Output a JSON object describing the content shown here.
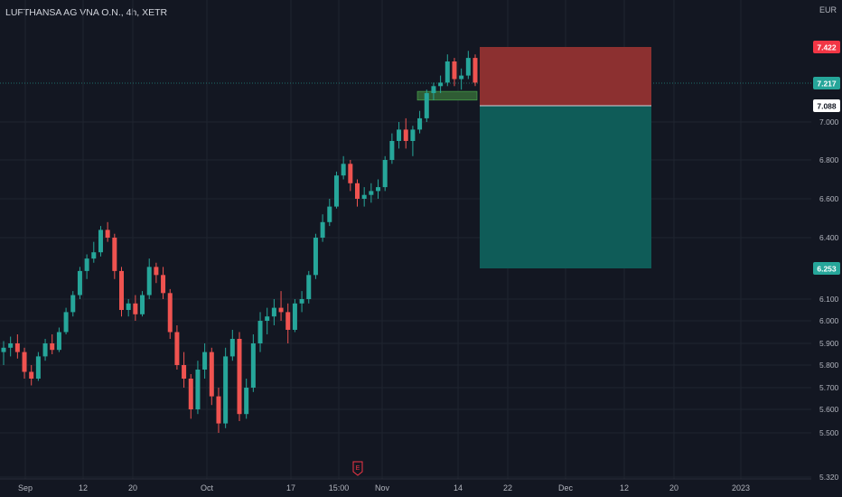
{
  "header": {
    "symbol_title": "LUFTHANSA AG VNA O.N., 4h, XETR",
    "currency": "EUR"
  },
  "colors": {
    "background": "#131722",
    "up": "#26a69a",
    "down": "#ef5350",
    "stop_zone": "#8c3030",
    "target_zone": "#0f5c58",
    "entry_zone": "#2f5c34"
  },
  "chart_data": {
    "type": "candlestick",
    "title": "LUFTHANSA AG VNA O.N., 4h, XETR",
    "currency": "EUR",
    "x_ticks": [
      "Sep",
      "12",
      "20",
      "Oct",
      "17",
      "15:00",
      "Nov",
      "14",
      "22",
      "Dec",
      "12",
      "20",
      "2023"
    ],
    "y_ticks": [
      "7.000",
      "6.800",
      "6.600",
      "6.400",
      "6.100",
      "6.000",
      "5.900",
      "5.800",
      "5.700",
      "5.600",
      "5.500",
      "5.320"
    ],
    "price_labels": [
      {
        "value": "7.422",
        "kind": "stop"
      },
      {
        "value": "7.217",
        "kind": "last"
      },
      {
        "value": "7.088",
        "kind": "entry"
      },
      {
        "value": "6.253",
        "kind": "target"
      }
    ],
    "position": {
      "type": "short",
      "entry": 7.088,
      "stop": 7.422,
      "target": 6.253
    },
    "marker": "E",
    "series": [
      {
        "o": 5.86,
        "h": 5.91,
        "l": 5.8,
        "c": 5.88
      },
      {
        "o": 5.88,
        "h": 5.93,
        "l": 5.84,
        "c": 5.9
      },
      {
        "o": 5.9,
        "h": 5.94,
        "l": 5.83,
        "c": 5.86
      },
      {
        "o": 5.86,
        "h": 5.88,
        "l": 5.74,
        "c": 5.77
      },
      {
        "o": 5.77,
        "h": 5.8,
        "l": 5.71,
        "c": 5.74
      },
      {
        "o": 5.74,
        "h": 5.86,
        "l": 5.73,
        "c": 5.84
      },
      {
        "o": 5.84,
        "h": 5.92,
        "l": 5.82,
        "c": 5.9
      },
      {
        "o": 5.9,
        "h": 5.94,
        "l": 5.85,
        "c": 5.87
      },
      {
        "o": 5.87,
        "h": 5.97,
        "l": 5.86,
        "c": 5.95
      },
      {
        "o": 5.95,
        "h": 6.06,
        "l": 5.94,
        "c": 6.04
      },
      {
        "o": 6.04,
        "h": 6.14,
        "l": 6.02,
        "c": 6.12
      },
      {
        "o": 6.12,
        "h": 6.26,
        "l": 6.1,
        "c": 6.24
      },
      {
        "o": 6.24,
        "h": 6.32,
        "l": 6.2,
        "c": 6.3
      },
      {
        "o": 6.3,
        "h": 6.38,
        "l": 6.28,
        "c": 6.33
      },
      {
        "o": 6.33,
        "h": 6.46,
        "l": 6.31,
        "c": 6.44
      },
      {
        "o": 6.44,
        "h": 6.48,
        "l": 6.38,
        "c": 6.4
      },
      {
        "o": 6.4,
        "h": 6.42,
        "l": 6.2,
        "c": 6.24
      },
      {
        "o": 6.24,
        "h": 6.26,
        "l": 6.02,
        "c": 6.05
      },
      {
        "o": 6.05,
        "h": 6.1,
        "l": 6.02,
        "c": 6.08
      },
      {
        "o": 6.08,
        "h": 6.12,
        "l": 6.0,
        "c": 6.03
      },
      {
        "o": 6.03,
        "h": 6.14,
        "l": 6.02,
        "c": 6.12
      },
      {
        "o": 6.12,
        "h": 6.3,
        "l": 6.1,
        "c": 6.26
      },
      {
        "o": 6.26,
        "h": 6.28,
        "l": 6.18,
        "c": 6.22
      },
      {
        "o": 6.22,
        "h": 6.26,
        "l": 6.1,
        "c": 6.13
      },
      {
        "o": 6.13,
        "h": 6.15,
        "l": 5.92,
        "c": 5.95
      },
      {
        "o": 5.95,
        "h": 5.98,
        "l": 5.78,
        "c": 5.8
      },
      {
        "o": 5.8,
        "h": 5.86,
        "l": 5.7,
        "c": 5.74
      },
      {
        "o": 5.74,
        "h": 5.76,
        "l": 5.56,
        "c": 5.6
      },
      {
        "o": 5.6,
        "h": 5.82,
        "l": 5.58,
        "c": 5.78
      },
      {
        "o": 5.78,
        "h": 5.9,
        "l": 5.74,
        "c": 5.86
      },
      {
        "o": 5.86,
        "h": 5.88,
        "l": 5.62,
        "c": 5.66
      },
      {
        "o": 5.66,
        "h": 5.7,
        "l": 5.5,
        "c": 5.54
      },
      {
        "o": 5.54,
        "h": 5.88,
        "l": 5.52,
        "c": 5.84
      },
      {
        "o": 5.84,
        "h": 5.96,
        "l": 5.82,
        "c": 5.92
      },
      {
        "o": 5.92,
        "h": 5.95,
        "l": 5.55,
        "c": 5.58
      },
      {
        "o": 5.58,
        "h": 5.74,
        "l": 5.56,
        "c": 5.7
      },
      {
        "o": 5.7,
        "h": 5.94,
        "l": 5.68,
        "c": 5.9
      },
      {
        "o": 5.9,
        "h": 6.04,
        "l": 5.86,
        "c": 6.0
      },
      {
        "o": 6.0,
        "h": 6.06,
        "l": 5.94,
        "c": 6.02
      },
      {
        "o": 6.02,
        "h": 6.1,
        "l": 5.98,
        "c": 6.06
      },
      {
        "o": 6.06,
        "h": 6.14,
        "l": 6.0,
        "c": 6.04
      },
      {
        "o": 6.04,
        "h": 6.08,
        "l": 5.9,
        "c": 5.96
      },
      {
        "o": 5.96,
        "h": 6.1,
        "l": 5.95,
        "c": 6.08
      },
      {
        "o": 6.08,
        "h": 6.14,
        "l": 6.04,
        "c": 6.1
      },
      {
        "o": 6.1,
        "h": 6.24,
        "l": 6.08,
        "c": 6.22
      },
      {
        "o": 6.22,
        "h": 6.42,
        "l": 6.2,
        "c": 6.4
      },
      {
        "o": 6.4,
        "h": 6.52,
        "l": 6.38,
        "c": 6.48
      },
      {
        "o": 6.48,
        "h": 6.6,
        "l": 6.46,
        "c": 6.56
      },
      {
        "o": 6.56,
        "h": 6.74,
        "l": 6.55,
        "c": 6.72
      },
      {
        "o": 6.72,
        "h": 6.82,
        "l": 6.7,
        "c": 6.78
      },
      {
        "o": 6.78,
        "h": 6.8,
        "l": 6.64,
        "c": 6.68
      },
      {
        "o": 6.68,
        "h": 6.7,
        "l": 6.56,
        "c": 6.6
      },
      {
        "o": 6.6,
        "h": 6.66,
        "l": 6.56,
        "c": 6.62
      },
      {
        "o": 6.62,
        "h": 6.68,
        "l": 6.58,
        "c": 6.64
      },
      {
        "o": 6.64,
        "h": 6.7,
        "l": 6.6,
        "c": 6.66
      },
      {
        "o": 6.66,
        "h": 6.82,
        "l": 6.64,
        "c": 6.8
      },
      {
        "o": 6.8,
        "h": 6.94,
        "l": 6.78,
        "c": 6.9
      },
      {
        "o": 6.9,
        "h": 7.0,
        "l": 6.86,
        "c": 6.96
      },
      {
        "o": 6.96,
        "h": 7.02,
        "l": 6.86,
        "c": 6.9
      },
      {
        "o": 6.9,
        "h": 6.98,
        "l": 6.82,
        "c": 6.96
      },
      {
        "o": 6.96,
        "h": 7.06,
        "l": 6.94,
        "c": 7.02
      },
      {
        "o": 7.02,
        "h": 7.18,
        "l": 7.0,
        "c": 7.16
      },
      {
        "o": 7.16,
        "h": 7.22,
        "l": 7.12,
        "c": 7.2
      },
      {
        "o": 7.2,
        "h": 7.26,
        "l": 7.16,
        "c": 7.22
      },
      {
        "o": 7.22,
        "h": 7.38,
        "l": 7.2,
        "c": 7.34
      },
      {
        "o": 7.34,
        "h": 7.36,
        "l": 7.2,
        "c": 7.24
      },
      {
        "o": 7.24,
        "h": 7.3,
        "l": 7.18,
        "c": 7.26
      },
      {
        "o": 7.26,
        "h": 7.4,
        "l": 7.24,
        "c": 7.36
      },
      {
        "o": 7.36,
        "h": 7.38,
        "l": 7.2,
        "c": 7.22
      }
    ]
  }
}
